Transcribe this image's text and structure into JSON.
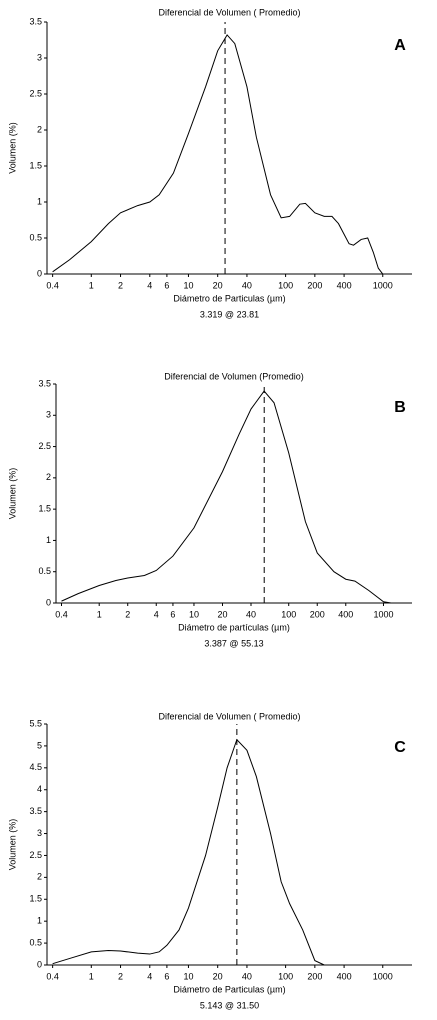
{
  "chart_data": [
    {
      "type": "line",
      "title": "Diferencial de Volumen ( Promedio)",
      "panel": "A",
      "x_label": "Diámetro de Particulas (µm)",
      "y_label": "Volumen (%)",
      "peak_x": 23.81,
      "peak_label": "3.319 @ 23.81",
      "x_scale": "log",
      "xlim": [
        0.35,
        2000
      ],
      "xticks": [
        0.4,
        1,
        2,
        4,
        6,
        10,
        20,
        40,
        100,
        200,
        400,
        1000
      ],
      "ylim": [
        0,
        3.5
      ],
      "yticks": [
        0,
        0.5,
        1,
        1.5,
        2,
        2.5,
        3,
        3.5
      ],
      "x": [
        0.4,
        0.6,
        1,
        1.5,
        2,
        3,
        4,
        5,
        7,
        10,
        15,
        20,
        25,
        30,
        40,
        50,
        70,
        90,
        110,
        140,
        160,
        200,
        250,
        300,
        350,
        450,
        500,
        600,
        700,
        800,
        900,
        1000
      ],
      "series": [
        {
          "color": "#000000",
          "values": [
            0.03,
            0.2,
            0.45,
            0.7,
            0.85,
            0.95,
            1.0,
            1.1,
            1.4,
            1.95,
            2.6,
            3.1,
            3.32,
            3.2,
            2.6,
            1.9,
            1.1,
            0.78,
            0.8,
            0.97,
            0.98,
            0.85,
            0.8,
            0.8,
            0.7,
            0.42,
            0.4,
            0.48,
            0.5,
            0.3,
            0.08,
            0
          ]
        }
      ]
    },
    {
      "type": "line",
      "title": "Diferencial de Volumen (Promedio)",
      "panel": "B",
      "x_label": "Diámetro de partículas (µm)",
      "y_label": "Volumen (%)",
      "peak_x": 55.13,
      "peak_label": "3.387 @ 55.13",
      "x_scale": "log",
      "xlim": [
        0.35,
        2000
      ],
      "xticks": [
        0.4,
        1,
        2,
        4,
        6,
        10,
        20,
        40,
        100,
        200,
        400,
        1000
      ],
      "ylim": [
        0,
        3.5
      ],
      "yticks": [
        0,
        0.5,
        1,
        1.5,
        2,
        2.5,
        3,
        3.5
      ],
      "x": [
        0.4,
        0.6,
        1,
        1.5,
        2,
        3,
        4,
        6,
        10,
        20,
        30,
        40,
        55,
        70,
        100,
        150,
        200,
        300,
        400,
        500,
        700,
        1000,
        1200
      ],
      "series": [
        {
          "color": "#000000",
          "values": [
            0.03,
            0.15,
            0.28,
            0.36,
            0.4,
            0.44,
            0.52,
            0.75,
            1.2,
            2.1,
            2.7,
            3.1,
            3.387,
            3.2,
            2.4,
            1.3,
            0.8,
            0.5,
            0.38,
            0.35,
            0.2,
            0.02,
            0
          ]
        }
      ]
    },
    {
      "type": "line",
      "title": "Diferencial de Volumen ( Promedio)",
      "panel": "C",
      "x_label": "Diámetro de Particulas (µm)",
      "y_label": "Volumen (%)",
      "peak_x": 31.5,
      "peak_label": "5.143 @ 31.50",
      "x_scale": "log",
      "xlim": [
        0.35,
        2000
      ],
      "xticks": [
        0.4,
        1,
        2,
        4,
        6,
        10,
        20,
        40,
        100,
        200,
        400,
        1000
      ],
      "ylim": [
        0,
        5.5
      ],
      "yticks": [
        0,
        0.5,
        1,
        1.5,
        2,
        2.5,
        3,
        3.5,
        4,
        4.5,
        5,
        5.5
      ],
      "x": [
        0.4,
        0.6,
        1,
        1.5,
        2,
        3,
        4,
        5,
        6,
        8,
        10,
        15,
        20,
        25,
        31.5,
        40,
        50,
        70,
        90,
        110,
        150,
        200,
        250
      ],
      "series": [
        {
          "color": "#000000",
          "values": [
            0.03,
            0.15,
            0.3,
            0.33,
            0.32,
            0.27,
            0.25,
            0.3,
            0.45,
            0.8,
            1.3,
            2.5,
            3.6,
            4.5,
            5.143,
            4.9,
            4.3,
            3.0,
            1.9,
            1.4,
            0.8,
            0.1,
            0
          ]
        }
      ]
    }
  ]
}
